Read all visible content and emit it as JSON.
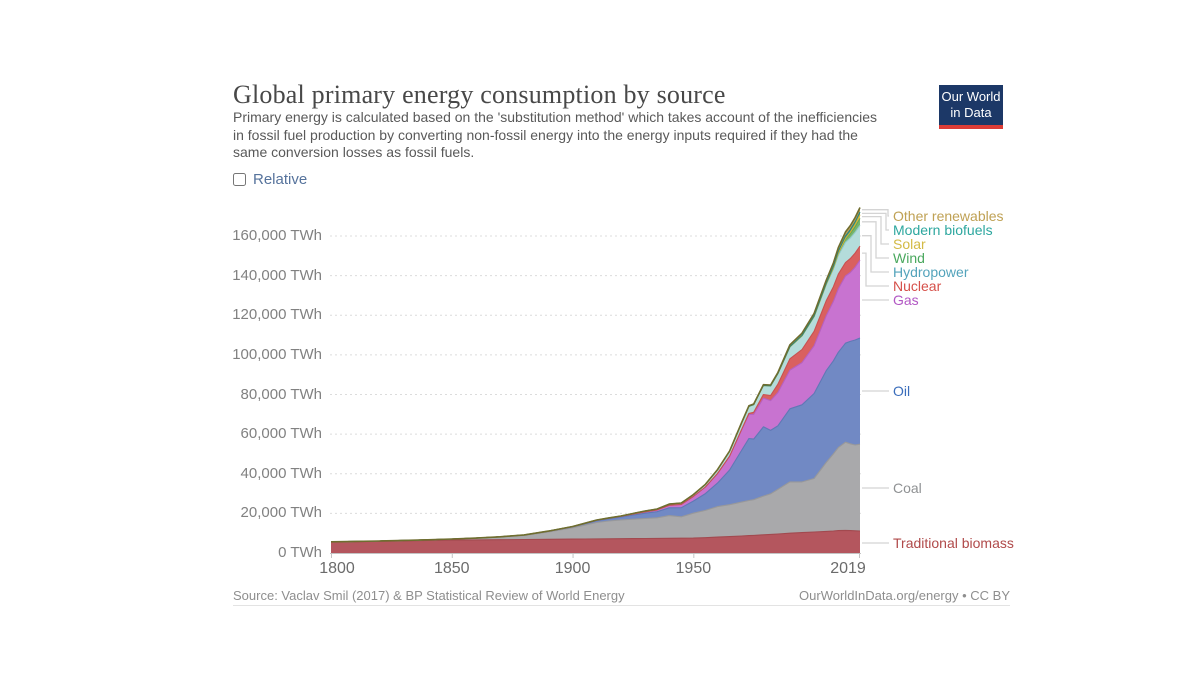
{
  "header": {
    "title": "Global primary energy consumption by source",
    "subtitle": "Primary energy is calculated based on the 'substitution method' which takes account of the inefficiencies in fossil fuel production by converting non-fossil energy into the energy inputs required if they had the same conversion losses as fossil fuels.",
    "logo": {
      "line1": "Our World",
      "line2": "in Data"
    }
  },
  "controls": {
    "relative_label": "Relative",
    "relative_checked": false
  },
  "chart_data": {
    "type": "area",
    "stacked": true,
    "title": "Global primary energy consumption by source",
    "unit": "TWh",
    "xlabel": "",
    "ylabel": "TWh",
    "ylim": [
      0,
      175000
    ],
    "xlim": [
      1800,
      2019
    ],
    "grid": "dashed-horizontal",
    "legend_position": "right",
    "y_ticks": [
      0,
      20000,
      40000,
      60000,
      80000,
      100000,
      120000,
      140000,
      160000
    ],
    "y_tick_suffix": " TWh",
    "x_label_ticks": [
      1800,
      1850,
      1900,
      1950,
      2019
    ],
    "x": [
      1800,
      1810,
      1820,
      1830,
      1840,
      1850,
      1860,
      1870,
      1880,
      1890,
      1900,
      1905,
      1910,
      1915,
      1920,
      1925,
      1930,
      1935,
      1940,
      1945,
      1950,
      1955,
      1960,
      1965,
      1970,
      1973,
      1975,
      1979,
      1982,
      1985,
      1990,
      1995,
      2000,
      2005,
      2008,
      2010,
      2013,
      2015,
      2017,
      2019
    ],
    "series_order_note": "bottom of stack first",
    "series": [
      {
        "name": "Traditional biomass",
        "fill": "#b4565e",
        "stroke": "#a2494f",
        "label_color": "#b04a4a",
        "values": [
          5556,
          5700,
          5900,
          6100,
          6300,
          6500,
          6600,
          6700,
          6800,
          6900,
          7000,
          7050,
          7100,
          7150,
          7200,
          7250,
          7300,
          7350,
          7400,
          7450,
          7500,
          7700,
          8000,
          8300,
          8600,
          8800,
          8900,
          9200,
          9400,
          9600,
          10000,
          10300,
          10600,
          10900,
          11100,
          11300,
          11400,
          11300,
          11200,
          11100
        ]
      },
      {
        "name": "Coal",
        "fill": "#a9a9ab",
        "stroke": "#98989a",
        "label_color": "#8f9193",
        "values": [
          100,
          130,
          170,
          250,
          350,
          570,
          900,
          1400,
          2100,
          3700,
          5730,
          7000,
          8300,
          9000,
          9500,
          9800,
          10100,
          10400,
          11500,
          10800,
          12600,
          13800,
          15400,
          16100,
          17100,
          17700,
          18000,
          19500,
          20500,
          22500,
          25900,
          25600,
          27000,
          34800,
          38900,
          41900,
          44500,
          43800,
          43300,
          43800
        ]
      },
      {
        "name": "Oil",
        "fill": "#7189c4",
        "stroke": "#6078b5",
        "label_color": "#3a6dbb",
        "values": [
          0,
          0,
          0,
          0,
          0,
          0,
          10,
          60,
          180,
          330,
          500,
          700,
          900,
          1100,
          1400,
          2100,
          2700,
          3100,
          3900,
          4600,
          6100,
          8500,
          11900,
          17500,
          26100,
          31300,
          30600,
          35000,
          32000,
          32100,
          36900,
          38900,
          42900,
          46300,
          47000,
          48100,
          50000,
          51700,
          53000,
          53600
        ]
      },
      {
        "name": "Gas",
        "fill": "#c873d0",
        "stroke": "#b660bf",
        "label_color": "#b257c4",
        "values": [
          0,
          0,
          0,
          0,
          0,
          0,
          0,
          0,
          60,
          90,
          120,
          160,
          250,
          320,
          400,
          500,
          700,
          900,
          1300,
          1700,
          2300,
          3300,
          4800,
          6900,
          10300,
          12100,
          12500,
          14500,
          15000,
          16800,
          19500,
          21300,
          24100,
          27700,
          30000,
          32000,
          33900,
          34800,
          36800,
          39300
        ]
      },
      {
        "name": "Nuclear",
        "fill": "#d9605f",
        "stroke": "#c85150",
        "label_color": "#d6504a",
        "values": [
          0,
          0,
          0,
          0,
          0,
          0,
          0,
          0,
          0,
          0,
          0,
          0,
          0,
          0,
          0,
          0,
          0,
          0,
          0,
          0,
          0,
          0,
          10,
          70,
          220,
          560,
          1000,
          1800,
          2600,
          4200,
          5700,
          6600,
          7300,
          7600,
          7400,
          7400,
          6800,
          7000,
          7100,
          7100
        ]
      },
      {
        "name": "Hydropower",
        "fill": "#b4dcdb",
        "stroke": "#93cac8",
        "label_color": "#53a3bb",
        "values": [
          0,
          0,
          0,
          0,
          0,
          0,
          0,
          0,
          10,
          30,
          50,
          80,
          120,
          160,
          200,
          280,
          380,
          480,
          600,
          700,
          930,
          1300,
          1900,
          2500,
          3300,
          3600,
          3900,
          4600,
          4900,
          5400,
          6000,
          6900,
          7400,
          8100,
          8900,
          9500,
          10200,
          10400,
          10500,
          10500
        ]
      },
      {
        "name": "Wind",
        "fill": "#76b56a",
        "stroke": "#5fa457",
        "label_color": "#4aa85e",
        "values": [
          0,
          0,
          0,
          0,
          0,
          0,
          0,
          0,
          0,
          0,
          0,
          0,
          0,
          0,
          0,
          0,
          0,
          0,
          0,
          0,
          0,
          0,
          0,
          0,
          0,
          0,
          0,
          0,
          0,
          0,
          10,
          20,
          80,
          280,
          600,
          960,
          1700,
          2200,
          2800,
          3500
        ]
      },
      {
        "name": "Solar",
        "fill": "#e5c54b",
        "stroke": "#d3b133",
        "label_color": "#d3ba44",
        "values": [
          0,
          0,
          0,
          0,
          0,
          0,
          0,
          0,
          0,
          0,
          0,
          0,
          0,
          0,
          0,
          0,
          0,
          0,
          0,
          0,
          0,
          0,
          0,
          0,
          0,
          0,
          0,
          0,
          0,
          0,
          0,
          0,
          0,
          10,
          30,
          90,
          350,
          670,
          1200,
          1800
        ]
      },
      {
        "name": "Modern biofuels",
        "fill": "#37958e",
        "stroke": "#2a867f",
        "label_color": "#2da79f",
        "values": [
          0,
          0,
          0,
          0,
          0,
          0,
          0,
          0,
          0,
          0,
          0,
          0,
          0,
          0,
          0,
          0,
          0,
          0,
          0,
          0,
          0,
          0,
          0,
          0,
          0,
          0,
          0,
          0,
          0,
          0,
          190,
          230,
          270,
          450,
          800,
          1100,
          1200,
          1300,
          1300,
          1400
        ]
      },
      {
        "name": "Other renewables",
        "fill": "#c3a25a",
        "stroke": "#6f6d2f",
        "label_color": "#bfa154",
        "values": [
          0,
          0,
          0,
          0,
          0,
          0,
          0,
          0,
          0,
          0,
          0,
          0,
          0,
          0,
          0,
          0,
          0,
          0,
          0,
          0,
          30,
          50,
          80,
          130,
          200,
          250,
          280,
          350,
          400,
          500,
          900,
          1100,
          1300,
          1500,
          1700,
          1800,
          2000,
          2100,
          2200,
          2300
        ]
      }
    ],
    "legend_top_to_bottom": [
      "Other renewables",
      "Modern biofuels",
      "Solar",
      "Wind",
      "Hydropower",
      "Nuclear",
      "Gas",
      "Oil",
      "Coal",
      "Traditional biomass"
    ]
  },
  "footer": {
    "source": "Source: Vaclav Smil (2017) & BP Statistical Review of World Energy",
    "credit": "OurWorldInData.org/energy • CC BY"
  }
}
